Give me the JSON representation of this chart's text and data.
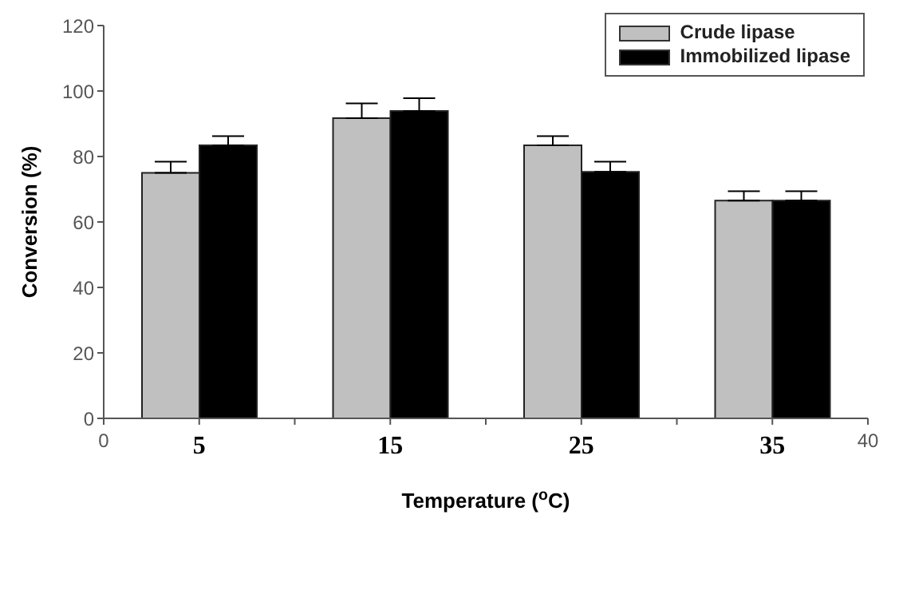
{
  "chart_data": {
    "type": "bar",
    "xlabel": "Temperature ($^{o}$C)",
    "ylabel": "Conversion (%)",
    "x": [
      5,
      15,
      25,
      35
    ],
    "series": [
      {
        "name": "Crude lipase",
        "color": "#c0c0c0",
        "values": [
          75,
          91.7,
          83.4,
          66.5
        ],
        "errors": [
          [
            75,
            78.4
          ],
          [
            91.7,
            96.2
          ],
          [
            83.4,
            86.2
          ],
          [
            66.5,
            69.4
          ]
        ]
      },
      {
        "name": "Immobilized lipase",
        "color": "#000000",
        "values": [
          83.4,
          93.9,
          75.3,
          66.5
        ],
        "errors": [
          [
            83.4,
            86.2
          ],
          [
            93.9,
            97.8
          ],
          [
            75.3,
            78.4
          ],
          [
            66.5,
            69.4
          ]
        ]
      }
    ],
    "xlim": [
      0,
      40
    ],
    "xticks": [
      0,
      5,
      {
        "value": 10,
        "label": null
      },
      15,
      {
        "value": 20,
        "label": null
      },
      25,
      {
        "value": 30,
        "label": null
      },
      35,
      40
    ],
    "ylim": [
      0,
      120
    ],
    "yticks": [
      0,
      20,
      40,
      60,
      80,
      100,
      120
    ],
    "grid": false,
    "legend": "top right"
  }
}
